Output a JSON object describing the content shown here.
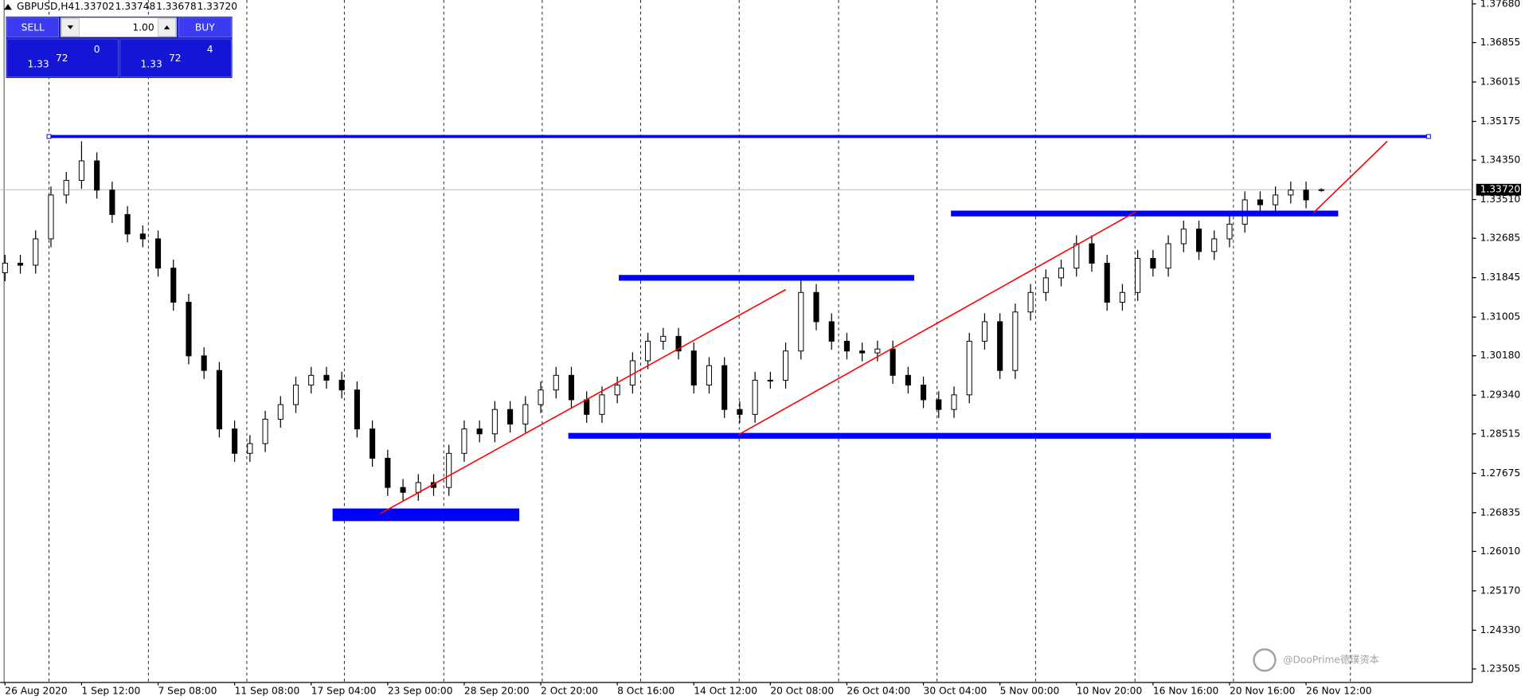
{
  "chart_data": {
    "type": "candlestick",
    "quote": {
      "symbol": "GBPUSD,H4",
      "open": "1.33702",
      "high": "1.33748",
      "low": "1.33678",
      "close": "1.33720"
    },
    "panel": {
      "sell": "SELL",
      "buy": "BUY",
      "lots": "1.00",
      "bid_big": "1.33",
      "bid_main": "72",
      "bid_pip": "0",
      "ask_big": "1.33",
      "ask_main": "72",
      "ask_pip": "4"
    },
    "watermark": "@DooPrime德璞资本",
    "categories": [
      "26 Aug 2020",
      null,
      null,
      null,
      null,
      "1 Sep 12:00",
      null,
      null,
      null,
      null,
      "7 Sep 08:00",
      null,
      null,
      null,
      null,
      "11 Sep 08:00",
      null,
      null,
      null,
      null,
      "17 Sep 04:00",
      null,
      null,
      null,
      null,
      "23 Sep 00:00",
      null,
      null,
      null,
      null,
      "28 Sep 20:00",
      null,
      null,
      null,
      null,
      "2 Oct 20:00",
      null,
      null,
      null,
      null,
      "8 Oct 16:00",
      null,
      null,
      null,
      null,
      "14 Oct 12:00",
      null,
      null,
      null,
      null,
      "20 Oct 08:00",
      null,
      null,
      null,
      null,
      "26 Oct 04:00",
      null,
      null,
      null,
      null,
      "30 Oct 04:00",
      null,
      null,
      null,
      null,
      "5 Nov 00:00",
      null,
      null,
      null,
      null,
      "10 Nov 20:00",
      null,
      null,
      null,
      null,
      "16 Nov 16:00",
      null,
      null,
      null,
      null,
      "20 Nov 16:00",
      null,
      null,
      null,
      null,
      "26 Nov 12:00",
      null,
      null,
      null,
      null
    ],
    "open": [
      1.3195,
      1.32152,
      1.32111,
      1.32672,
      1.33607,
      1.33919,
      1.34334,
      1.33711,
      1.33191,
      1.32776,
      1.32672,
      1.32048,
      1.31321,
      1.30178,
      1.29867,
      1.2862,
      1.281,
      1.28308,
      1.28828,
      1.29139,
      1.29555,
      1.29763,
      1.29659,
      1.29451,
      1.2862,
      1.27996,
      1.27373,
      1.27269,
      1.27477,
      1.27373,
      1.281,
      1.2862,
      1.28516,
      1.29035,
      1.28724,
      1.29139,
      1.29451,
      1.29763,
      1.29243,
      1.28931,
      1.29347,
      1.29555,
      1.30074,
      1.3049,
      1.30594,
      1.30282,
      1.29555,
      1.2997,
      1.29035,
      1.28931,
      1.29659,
      1.29659,
      1.30282,
      1.31529,
      1.30906,
      1.3049,
      1.30282,
      1.30241,
      1.30324,
      1.29763,
      1.29555,
      1.29243,
      1.29035,
      1.29347,
      1.3049,
      1.30906,
      1.29867,
      1.31113,
      1.31529,
      1.31841,
      1.32048,
      1.32568,
      1.32152,
      1.31321,
      1.31529,
      1.32256,
      1.32048,
      1.32568,
      1.3288,
      1.32402,
      1.32672,
      1.32984,
      1.33503,
      1.33399,
      1.33607,
      1.33711,
      1.33702,
      null,
      null,
      null
    ],
    "high": [
      1.32332,
      1.32332,
      1.32852,
      1.33787,
      1.34099,
      1.3475,
      1.34514,
      1.33891,
      1.33371,
      1.32956,
      1.32852,
      1.32228,
      1.31501,
      1.30358,
      1.30047,
      1.288,
      1.28488,
      1.29008,
      1.29319,
      1.29735,
      1.29943,
      1.29943,
      1.29839,
      1.29631,
      1.288,
      1.28176,
      1.27553,
      1.27657,
      1.27657,
      1.2828,
      1.288,
      1.288,
      1.29215,
      1.29215,
      1.29319,
      1.29631,
      1.29943,
      1.29943,
      1.29423,
      1.29527,
      1.29735,
      1.30254,
      1.3067,
      1.30774,
      1.30774,
      1.30462,
      1.3015,
      1.3015,
      1.29215,
      1.29839,
      1.29839,
      1.30462,
      1.3185,
      1.31709,
      1.31086,
      1.3067,
      1.30462,
      1.30504,
      1.30504,
      1.29943,
      1.29735,
      1.29423,
      1.29527,
      1.3067,
      1.31086,
      1.31086,
      1.31293,
      1.31709,
      1.32021,
      1.32228,
      1.32748,
      1.32748,
      1.32332,
      1.31709,
      1.32436,
      1.32436,
      1.32748,
      1.3306,
      1.3306,
      1.32852,
      1.33164,
      1.33683,
      1.33683,
      1.33787,
      1.33891,
      1.33891,
      1.33748,
      null,
      null,
      null
    ],
    "low": [
      1.3177,
      1.31931,
      1.31931,
      1.32492,
      1.33427,
      1.33739,
      1.33531,
      1.33011,
      1.32596,
      1.32492,
      1.31868,
      1.31141,
      1.29998,
      1.29687,
      1.2844,
      1.2792,
      1.2792,
      1.28128,
      1.28648,
      1.28959,
      1.29375,
      1.29479,
      1.29271,
      1.2844,
      1.27816,
      1.27193,
      1.27089,
      1.27089,
      1.27193,
      1.27193,
      1.2792,
      1.28336,
      1.28336,
      1.28544,
      1.28544,
      1.28959,
      1.29271,
      1.29063,
      1.28751,
      1.28751,
      1.29167,
      1.29375,
      1.29894,
      1.3031,
      1.30102,
      1.29375,
      1.29375,
      1.28855,
      1.28751,
      1.28751,
      1.29479,
      1.29479,
      1.30102,
      1.30726,
      1.3031,
      1.30102,
      1.30061,
      1.30061,
      1.29583,
      1.29375,
      1.29063,
      1.28855,
      1.28855,
      1.29167,
      1.3031,
      1.29687,
      1.29687,
      1.30933,
      1.31349,
      1.31661,
      1.31868,
      1.31972,
      1.31141,
      1.31141,
      1.31349,
      1.31868,
      1.31868,
      1.32388,
      1.32222,
      1.32222,
      1.32492,
      1.32804,
      1.33219,
      1.33219,
      1.33427,
      1.33323,
      1.33678,
      null,
      null,
      null
    ],
    "close": [
      1.32152,
      1.32111,
      1.32672,
      1.33607,
      1.33919,
      1.34334,
      1.33711,
      1.33191,
      1.32776,
      1.32672,
      1.32048,
      1.31321,
      1.30178,
      1.29867,
      1.2862,
      1.281,
      1.28308,
      1.28828,
      1.29139,
      1.29555,
      1.29763,
      1.29659,
      1.29451,
      1.2862,
      1.27996,
      1.27373,
      1.27269,
      1.27477,
      1.27373,
      1.281,
      1.2862,
      1.28516,
      1.29035,
      1.28724,
      1.29139,
      1.29451,
      1.29763,
      1.29243,
      1.28931,
      1.29347,
      1.29555,
      1.30074,
      1.3049,
      1.30594,
      1.30282,
      1.29555,
      1.2997,
      1.29035,
      1.28931,
      1.29659,
      1.29659,
      1.30282,
      1.31529,
      1.30906,
      1.3049,
      1.30282,
      1.30241,
      1.30324,
      1.29763,
      1.29555,
      1.29243,
      1.29035,
      1.29347,
      1.3049,
      1.30906,
      1.29867,
      1.31113,
      1.31529,
      1.31841,
      1.32048,
      1.32568,
      1.32152,
      1.31321,
      1.31529,
      1.32256,
      1.32048,
      1.32568,
      1.3288,
      1.32402,
      1.32672,
      1.32984,
      1.33503,
      1.33399,
      1.33607,
      1.33711,
      1.33503,
      1.3372,
      null,
      null,
      null
    ],
    "ylim": [
      1.23217,
      1.37763
    ],
    "yticks": [
      {
        "value": 1.3768,
        "label": "1.37680"
      },
      1.36855,
      1.36015,
      {
        "value": 1.35175,
        "label": "1.35175"
      },
      {
        "value": 1.3435,
        "label": "1.34350"
      },
      {
        "value": 1.3351,
        "label": "1.33510"
      },
      1.32685,
      1.31845,
      1.31005,
      {
        "value": 1.3018,
        "label": "1.30180"
      },
      {
        "value": 1.2934,
        "label": "1.29340"
      },
      1.28515,
      1.27675,
      1.26835,
      {
        "value": 1.2601,
        "label": "1.26010"
      },
      {
        "value": 1.2517,
        "label": "1.25170"
      },
      {
        "value": 1.2433,
        "label": "1.24330"
      },
      1.23505
    ],
    "levels": [
      {
        "price": 1.34854,
        "from": 2.87,
        "to": 93,
        "style": "thin"
      },
      {
        "price": 1.33212,
        "from": 61.8,
        "to": 87.1,
        "style": "thick"
      },
      {
        "price": 1.31841,
        "from": 40.1,
        "to": 59.4,
        "style": "thick"
      },
      {
        "price": 1.28474,
        "from": 36.8,
        "to": 82.7,
        "style": "thick"
      },
      {
        "price": 1.26791,
        "from": 21.4,
        "to": 33.6,
        "style": "block"
      }
    ],
    "trendlines": [
      {
        "from": [
          24.5,
          1.26812
        ],
        "to": [
          51,
          1.31591
        ]
      },
      {
        "from": [
          47.9,
          1.28495
        ],
        "to": [
          73.9,
          1.33254
        ]
      },
      {
        "from": [
          85.5,
          1.33233
        ],
        "to": [
          90.3,
          1.3475
        ]
      }
    ],
    "level_color": "#0000ff",
    "trend_color": "#ff0000",
    "candle_color": "#000000"
  }
}
